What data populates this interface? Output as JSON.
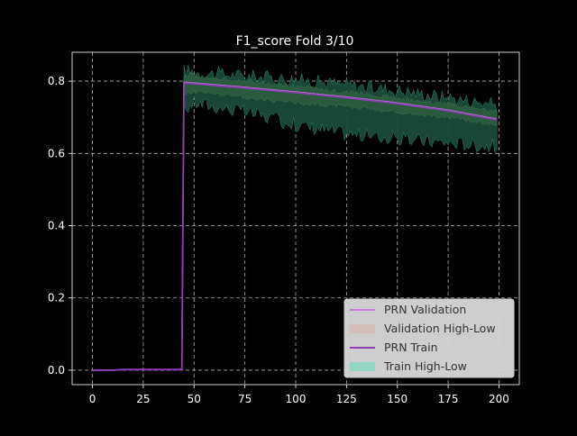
{
  "chart_data": {
    "type": "line",
    "title": "F1_score Fold 3/10",
    "xlabel": "",
    "ylabel": "",
    "xlim": [
      -10,
      210
    ],
    "ylim": [
      -0.04,
      0.88
    ],
    "xticks": [
      0,
      25,
      50,
      75,
      100,
      125,
      150,
      175,
      200
    ],
    "yticks": [
      0.0,
      0.2,
      0.4,
      0.6,
      0.8
    ],
    "ytick_labels": [
      "0.0",
      "0.2",
      "0.4",
      "0.6",
      "0.8"
    ],
    "grid": true,
    "legend_position": "bottom-right",
    "series": [
      {
        "name": "PRN Validation",
        "kind": "line",
        "color": "#c77dd6",
        "x": [
          0,
          10,
          15,
          20,
          30,
          40,
          44,
          45,
          50,
          75,
          100,
          125,
          150,
          175,
          199
        ],
        "y": [
          0.0,
          0.0,
          0.002,
          0.002,
          0.002,
          0.002,
          0.002,
          0.797,
          0.795,
          0.783,
          0.77,
          0.756,
          0.74,
          0.72,
          0.695
        ]
      },
      {
        "name": "Validation High-Low",
        "kind": "band",
        "color": "#d8b8b4",
        "x": [
          45,
          50,
          75,
          100,
          125,
          150,
          175,
          199
        ],
        "high": [
          0.83,
          0.825,
          0.815,
          0.805,
          0.79,
          0.775,
          0.755,
          0.735
        ],
        "low": [
          0.72,
          0.74,
          0.715,
          0.68,
          0.655,
          0.64,
          0.63,
          0.62
        ]
      },
      {
        "name": "PRN Train",
        "kind": "line",
        "color": "#8e3fb5",
        "x": [
          0,
          10,
          15,
          20,
          30,
          40,
          44,
          45,
          50,
          75,
          100,
          125,
          150,
          175,
          199
        ],
        "y": [
          0.0,
          0.0,
          0.002,
          0.002,
          0.002,
          0.002,
          0.002,
          0.795,
          0.793,
          0.781,
          0.768,
          0.754,
          0.738,
          0.718,
          0.693
        ]
      },
      {
        "name": "Train High-Low",
        "kind": "band",
        "color": "#7fd6bd",
        "x": [
          45,
          50,
          75,
          100,
          125,
          150,
          175,
          199
        ],
        "high": [
          0.82,
          0.815,
          0.8,
          0.785,
          0.77,
          0.755,
          0.735,
          0.715
        ],
        "low": [
          0.77,
          0.77,
          0.755,
          0.74,
          0.73,
          0.715,
          0.7,
          0.68
        ]
      }
    ]
  }
}
